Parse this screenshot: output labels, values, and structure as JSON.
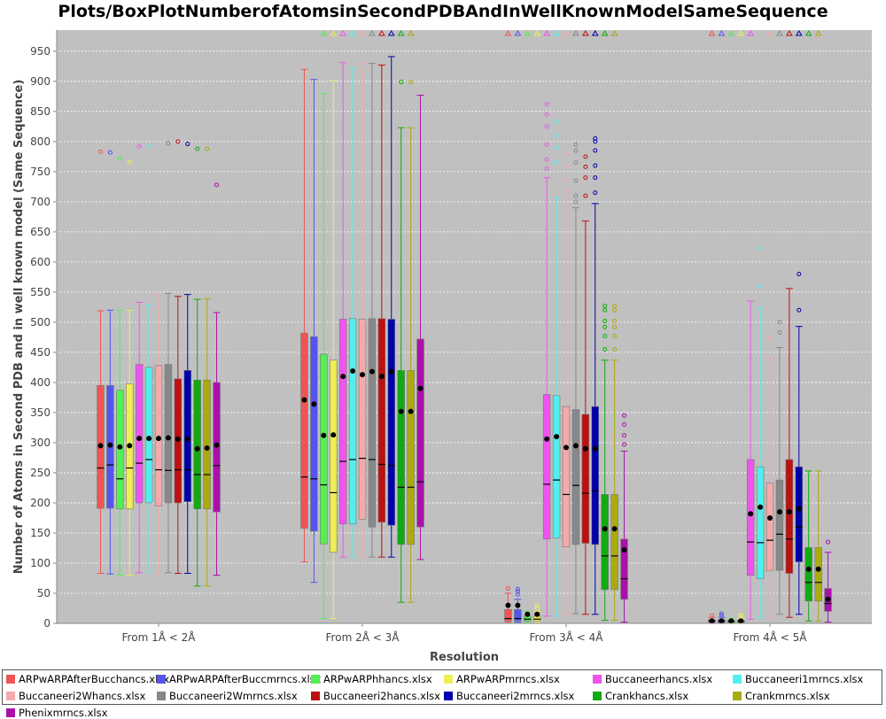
{
  "chart_data": {
    "type": "boxplot",
    "title": "Plots/BoxPlotNumberofAtomsinSecondPDBAndInWellKnownModelSameSequence",
    "xlabel": "Resolution",
    "ylabel": "Number of Atoms in Second PDB and in well known model (Same Sequence)",
    "ylim": [
      0,
      985
    ],
    "yticks": [
      0,
      50,
      100,
      150,
      200,
      250,
      300,
      350,
      400,
      450,
      500,
      550,
      600,
      650,
      700,
      750,
      800,
      850,
      900,
      950
    ],
    "grid": true,
    "legend_position": "bottom",
    "categories": [
      "From 1Å < 2Å",
      "From 2Å < 3Å",
      "From 3Å < 4Å",
      "From 4Å < 5Å"
    ],
    "series": [
      {
        "name": "ARPwARPAfterBucchancs.xlsx",
        "color": "#ee5555",
        "stats": [
          {
            "min": 83,
            "q1": 191,
            "median": 258,
            "q3": 395,
            "max": 519,
            "mean": 295,
            "outliers": [
              783
            ],
            "offscale": false
          },
          {
            "min": 102,
            "q1": 158,
            "median": 243,
            "q3": 482,
            "max": 920,
            "mean": 371,
            "outliers": [],
            "offscale": false
          },
          {
            "min": 2,
            "q1": 4,
            "median": 8,
            "q3": 23,
            "max": 50,
            "mean": 30,
            "outliers": [
              58
            ],
            "offscale": true
          },
          {
            "min": 1,
            "q1": 2,
            "median": 4,
            "q3": 6,
            "max": 10,
            "mean": 4,
            "outliers": [
              13
            ],
            "offscale": true
          }
        ]
      },
      {
        "name": "ARPwARPAfterBuccmrncs.xlsx",
        "color": "#5555ee",
        "stats": [
          {
            "min": 82,
            "q1": 191,
            "median": 263,
            "q3": 395,
            "max": 520,
            "mean": 296,
            "outliers": [
              782
            ],
            "offscale": false
          },
          {
            "min": 68,
            "q1": 153,
            "median": 240,
            "q3": 476,
            "max": 903,
            "mean": 364,
            "outliers": [],
            "offscale": false
          },
          {
            "min": 2,
            "q1": 4,
            "median": 8,
            "q3": 23,
            "max": 40,
            "mean": 30,
            "outliers": [
              48,
              53,
              57
            ],
            "offscale": true
          },
          {
            "min": 1,
            "q1": 2,
            "median": 4,
            "q3": 6,
            "max": 10,
            "mean": 4,
            "outliers": [
              13,
              16
            ],
            "offscale": true
          }
        ]
      },
      {
        "name": "ARPwARPhhancs.xlsx",
        "color": "#55ee55",
        "stats": [
          {
            "min": 80,
            "q1": 190,
            "median": 240,
            "q3": 387,
            "max": 520,
            "mean": 293,
            "outliers": [
              772
            ],
            "offscale": false
          },
          {
            "min": 8,
            "q1": 132,
            "median": 230,
            "q3": 447,
            "max": 880,
            "mean": 312,
            "outliers": [],
            "offscale": true
          },
          {
            "min": 2,
            "q1": 4,
            "median": 7,
            "q3": 12,
            "max": 20,
            "mean": 15,
            "outliers": [],
            "offscale": true
          },
          {
            "min": 1,
            "q1": 2,
            "median": 3,
            "q3": 5,
            "max": 8,
            "mean": 4,
            "outliers": [],
            "offscale": true
          }
        ]
      },
      {
        "name": "ARPwARPmrncs.xlsx",
        "color": "#eeee55",
        "stats": [
          {
            "min": 80,
            "q1": 190,
            "median": 258,
            "q3": 398,
            "max": 520,
            "mean": 295,
            "outliers": [
              766
            ],
            "offscale": false
          },
          {
            "min": 8,
            "q1": 118,
            "median": 217,
            "q3": 437,
            "max": 901,
            "mean": 313,
            "outliers": [],
            "offscale": true
          },
          {
            "min": 2,
            "q1": 4,
            "median": 7,
            "q3": 12,
            "max": 20,
            "mean": 15,
            "outliers": [
              25,
              30
            ],
            "offscale": true
          },
          {
            "min": 1,
            "q1": 2,
            "median": 3,
            "q3": 5,
            "max": 8,
            "mean": 4,
            "outliers": [
              12,
              14
            ],
            "offscale": true
          }
        ]
      },
      {
        "name": "Buccaneerhancs.xlsx",
        "color": "#ee55ee",
        "stats": [
          {
            "min": 84,
            "q1": 200,
            "median": 266,
            "q3": 430,
            "max": 533,
            "mean": 307,
            "outliers": [
              792
            ],
            "offscale": false
          },
          {
            "min": 110,
            "q1": 165,
            "median": 269,
            "q3": 505,
            "max": 931,
            "mean": 410,
            "outliers": [],
            "offscale": true
          },
          {
            "min": 12,
            "q1": 140,
            "median": 231,
            "q3": 380,
            "max": 740,
            "mean": 306,
            "outliers": [
              755,
              770,
              795,
              825,
              845,
              862
            ],
            "offscale": true
          },
          {
            "min": 7,
            "q1": 80,
            "median": 135,
            "q3": 272,
            "max": 535,
            "mean": 182,
            "outliers": [],
            "offscale": true
          }
        ]
      },
      {
        "name": "Buccaneeri1mrncs.xlsx",
        "color": "#55eeee",
        "stats": [
          {
            "min": 85,
            "q1": 200,
            "median": 272,
            "q3": 425,
            "max": 528,
            "mean": 307,
            "outliers": [
              793
            ],
            "offscale": false
          },
          {
            "min": 110,
            "q1": 165,
            "median": 272,
            "q3": 506,
            "max": 921,
            "mean": 419,
            "outliers": [],
            "offscale": true
          },
          {
            "min": 12,
            "q1": 142,
            "median": 238,
            "q3": 378,
            "max": 707,
            "mean": 310,
            "outliers": [
              765,
              790,
              810,
              833
            ],
            "offscale": true
          },
          {
            "min": 9,
            "q1": 74,
            "median": 134,
            "q3": 260,
            "max": 523,
            "mean": 193,
            "outliers": [
              560,
              623
            ],
            "offscale": false
          }
        ]
      },
      {
        "name": "Buccaneeri2Whancs.xlsx",
        "color": "#f4aaaa",
        "stats": [
          {
            "min": 82,
            "q1": 195,
            "median": 255,
            "q3": 428,
            "max": 545,
            "mean": 307,
            "outliers": [],
            "offscale": false
          },
          {
            "min": 110,
            "q1": 173,
            "median": 274,
            "q3": 505,
            "max": 930,
            "mean": 413,
            "outliers": [],
            "offscale": true
          },
          {
            "min": 13,
            "q1": 127,
            "median": 214,
            "q3": 360,
            "max": 720,
            "mean": 292,
            "outliers": [
              735,
              760,
              780
            ],
            "offscale": true
          },
          {
            "min": 10,
            "q1": 88,
            "median": 138,
            "q3": 233,
            "max": 440,
            "mean": 175,
            "outliers": [
              473
            ],
            "offscale": true
          }
        ]
      },
      {
        "name": "Buccaneeri2Wmrncs.xlsx",
        "color": "#888888",
        "stats": [
          {
            "min": 84,
            "q1": 200,
            "median": 254,
            "q3": 430,
            "max": 548,
            "mean": 308,
            "outliers": [
              797
            ],
            "offscale": false
          },
          {
            "min": 110,
            "q1": 160,
            "median": 272,
            "q3": 506,
            "max": 930,
            "mean": 418,
            "outliers": [],
            "offscale": true
          },
          {
            "min": 16,
            "q1": 131,
            "median": 229,
            "q3": 355,
            "max": 690,
            "mean": 295,
            "outliers": [
              700,
              710,
              735,
              765,
              785,
              795
            ],
            "offscale": true
          },
          {
            "min": 15,
            "q1": 88,
            "median": 148,
            "q3": 238,
            "max": 458,
            "mean": 185,
            "outliers": [
              483,
              500
            ],
            "offscale": true
          }
        ]
      },
      {
        "name": "Buccaneeri2hancs.xlsx",
        "color": "#bb1111",
        "stats": [
          {
            "min": 83,
            "q1": 200,
            "median": 255,
            "q3": 406,
            "max": 543,
            "mean": 306,
            "outliers": [
              800
            ],
            "offscale": false
          },
          {
            "min": 110,
            "q1": 168,
            "median": 264,
            "q3": 506,
            "max": 927,
            "mean": 410,
            "outliers": [],
            "offscale": true
          },
          {
            "min": 15,
            "q1": 133,
            "median": 216,
            "q3": 347,
            "max": 668,
            "mean": 290,
            "outliers": [
              710,
              740,
              758,
              775
            ],
            "offscale": true
          },
          {
            "min": 10,
            "q1": 83,
            "median": 140,
            "q3": 272,
            "max": 556,
            "mean": 185,
            "outliers": [],
            "offscale": true
          }
        ]
      },
      {
        "name": "Buccaneeri2mrncs.xlsx",
        "color": "#0000aa",
        "stats": [
          {
            "min": 83,
            "q1": 202,
            "median": 255,
            "q3": 420,
            "max": 546,
            "mean": 306,
            "outliers": [
              796
            ],
            "offscale": false
          },
          {
            "min": 110,
            "q1": 163,
            "median": 262,
            "q3": 505,
            "max": 941,
            "mean": 418,
            "outliers": [],
            "offscale": true
          },
          {
            "min": 15,
            "q1": 131,
            "median": 220,
            "q3": 360,
            "max": 697,
            "mean": 290,
            "outliers": [
              715,
              740,
              760,
              785,
              800,
              805
            ],
            "offscale": true
          },
          {
            "min": 15,
            "q1": 102,
            "median": 160,
            "q3": 260,
            "max": 493,
            "mean": 190,
            "outliers": [
              520,
              580
            ],
            "offscale": true
          }
        ]
      },
      {
        "name": "Crankhancs.xlsx",
        "color": "#11aa11",
        "stats": [
          {
            "min": 62,
            "q1": 190,
            "median": 247,
            "q3": 404,
            "max": 538,
            "mean": 290,
            "outliers": [
              788
            ],
            "offscale": false
          },
          {
            "min": 35,
            "q1": 131,
            "median": 226,
            "q3": 420,
            "max": 823,
            "mean": 352,
            "outliers": [
              899
            ],
            "offscale": true
          },
          {
            "min": 5,
            "q1": 56,
            "median": 112,
            "q3": 214,
            "max": 437,
            "mean": 157,
            "outliers": [
              455,
              477,
              492,
              502,
              520,
              527
            ],
            "offscale": true
          },
          {
            "min": 4,
            "q1": 37,
            "median": 68,
            "q3": 126,
            "max": 253,
            "mean": 90,
            "outliers": [],
            "offscale": true
          }
        ]
      },
      {
        "name": "Crankmrncs.xlsx",
        "color": "#aaaa11",
        "stats": [
          {
            "min": 62,
            "q1": 190,
            "median": 247,
            "q3": 404,
            "max": 539,
            "mean": 291,
            "outliers": [
              788
            ],
            "offscale": false
          },
          {
            "min": 35,
            "q1": 131,
            "median": 226,
            "q3": 420,
            "max": 823,
            "mean": 352,
            "outliers": [
              899
            ],
            "offscale": true
          },
          {
            "min": 5,
            "q1": 56,
            "median": 112,
            "q3": 214,
            "max": 437,
            "mean": 157,
            "outliers": [
              455,
              477,
              492,
              502,
              520,
              527
            ],
            "offscale": true
          },
          {
            "min": 4,
            "q1": 37,
            "median": 68,
            "q3": 126,
            "max": 253,
            "mean": 90,
            "outliers": [],
            "offscale": true
          }
        ]
      },
      {
        "name": "Phenixmrncs.xlsx",
        "color": "#aa11aa",
        "stats": [
          {
            "min": 80,
            "q1": 185,
            "median": 262,
            "q3": 400,
            "max": 516,
            "mean": 296,
            "outliers": [
              728
            ],
            "offscale": false
          },
          {
            "min": 106,
            "q1": 160,
            "median": 235,
            "q3": 472,
            "max": 877,
            "mean": 390,
            "outliers": [],
            "offscale": false
          },
          {
            "min": 2,
            "q1": 40,
            "median": 74,
            "q3": 140,
            "max": 286,
            "mean": 122,
            "outliers": [
              297,
              312,
              330,
              345
            ],
            "offscale": false
          },
          {
            "min": 2,
            "q1": 20,
            "median": 33,
            "q3": 58,
            "max": 118,
            "mean": 40,
            "outliers": [
              135
            ],
            "offscale": false
          }
        ]
      }
    ]
  }
}
